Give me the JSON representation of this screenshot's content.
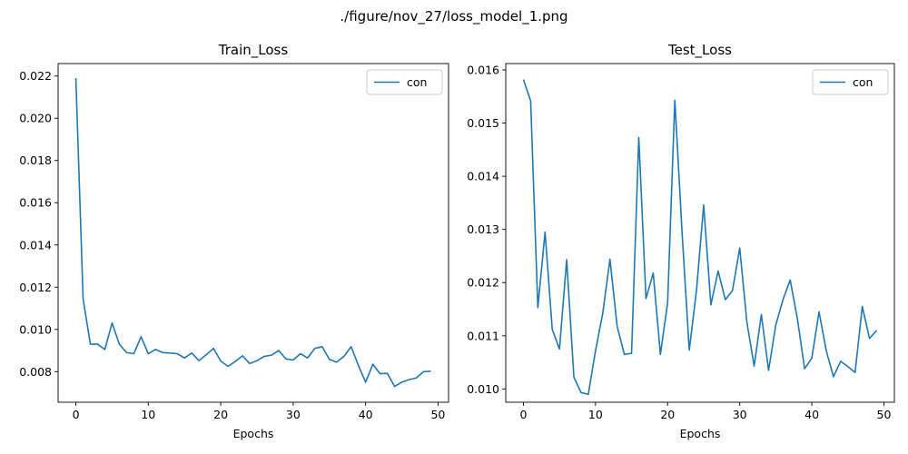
{
  "figure": {
    "suptitle": "./figure/nov_27/loss_model_1.png",
    "line_color": "#1f77b4"
  },
  "chart_data": [
    {
      "type": "line",
      "title": "Train_Loss",
      "xlabel": "Epochs",
      "ylabel": "",
      "xlim": [
        -2.45,
        51.45
      ],
      "ylim": [
        0.00655,
        0.02259
      ],
      "xticks": [
        0,
        10,
        20,
        30,
        40,
        50
      ],
      "xtick_labels": [
        "0",
        "10",
        "20",
        "30",
        "40",
        "50"
      ],
      "yticks": [
        0.008,
        0.01,
        0.012,
        0.014,
        0.016,
        0.018,
        0.02,
        0.022
      ],
      "ytick_labels": [
        "0.008",
        "0.010",
        "0.012",
        "0.014",
        "0.016",
        "0.018",
        "0.020",
        "0.022"
      ],
      "grid": false,
      "legend": "top-right",
      "series": [
        {
          "name": "con",
          "x": [
            0,
            1,
            2,
            3,
            4,
            5,
            6,
            7,
            8,
            9,
            10,
            11,
            12,
            13,
            14,
            15,
            16,
            17,
            18,
            19,
            20,
            21,
            22,
            23,
            24,
            25,
            26,
            27,
            28,
            29,
            30,
            31,
            32,
            33,
            34,
            35,
            36,
            37,
            38,
            39,
            40,
            41,
            42,
            43,
            44,
            45,
            46,
            47,
            48,
            49
          ],
          "values": [
            0.0219,
            0.01145,
            0.0093,
            0.0093,
            0.00905,
            0.0103,
            0.0093,
            0.0089,
            0.00885,
            0.00965,
            0.00885,
            0.00905,
            0.0089,
            0.00888,
            0.00885,
            0.00865,
            0.00888,
            0.00852,
            0.0088,
            0.0091,
            0.0085,
            0.00825,
            0.00848,
            0.00875,
            0.00838,
            0.00852,
            0.00872,
            0.00878,
            0.009,
            0.0086,
            0.00855,
            0.00885,
            0.00865,
            0.0091,
            0.00918,
            0.00858,
            0.00845,
            0.00872,
            0.00918,
            0.0083,
            0.0075,
            0.00835,
            0.0079,
            0.00792,
            0.0073,
            0.0075,
            0.00762,
            0.0077,
            0.008,
            0.00802
          ]
        }
      ]
    },
    {
      "type": "line",
      "title": "Test_Loss",
      "xlabel": "Epochs",
      "ylabel": "",
      "xlim": [
        -2.45,
        51.45
      ],
      "ylim": [
        0.00975,
        0.01612
      ],
      "xticks": [
        0,
        10,
        20,
        30,
        40,
        50
      ],
      "xtick_labels": [
        "0",
        "10",
        "20",
        "30",
        "40",
        "50"
      ],
      "yticks": [
        0.01,
        0.011,
        0.012,
        0.013,
        0.014,
        0.015,
        0.016
      ],
      "ytick_labels": [
        "0.010",
        "0.011",
        "0.012",
        "0.013",
        "0.014",
        "0.015",
        "0.016"
      ],
      "grid": false,
      "legend": "top-right",
      "series": [
        {
          "name": "con",
          "x": [
            0,
            1,
            2,
            3,
            4,
            5,
            6,
            7,
            8,
            9,
            10,
            11,
            12,
            13,
            14,
            15,
            16,
            17,
            18,
            19,
            20,
            21,
            22,
            23,
            24,
            25,
            26,
            27,
            28,
            29,
            30,
            31,
            32,
            33,
            34,
            35,
            36,
            37,
            38,
            39,
            40,
            41,
            42,
            43,
            44,
            45,
            46,
            47,
            48,
            49
          ],
          "values": [
            0.01582,
            0.01542,
            0.01153,
            0.01295,
            0.01112,
            0.01075,
            0.01243,
            0.01022,
            0.00993,
            0.0099,
            0.01072,
            0.01142,
            0.01244,
            0.01118,
            0.01065,
            0.01067,
            0.01473,
            0.0117,
            0.01218,
            0.01065,
            0.01162,
            0.01543,
            0.01295,
            0.01073,
            0.01185,
            0.01346,
            0.01158,
            0.01222,
            0.01168,
            0.01185,
            0.01265,
            0.01125,
            0.01043,
            0.0114,
            0.01035,
            0.0112,
            0.01168,
            0.01205,
            0.01132,
            0.01038,
            0.01058,
            0.01145,
            0.01072,
            0.01023,
            0.01052,
            0.01042,
            0.01031,
            0.01155,
            0.01095,
            0.0111
          ]
        }
      ]
    }
  ]
}
